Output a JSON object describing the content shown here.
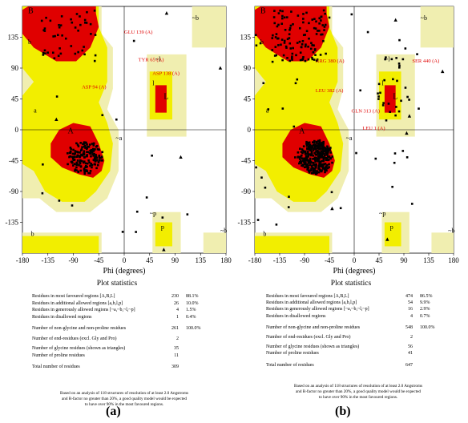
{
  "colors": {
    "core": "#e00000",
    "allowed": "#f2ee00",
    "generous": "#f0eeb0",
    "bg": "#ffffff"
  },
  "plots": [
    {
      "id": "a",
      "caption": "(a)",
      "x_axis_label": "Phi (degrees)",
      "psi_ticks": [
        "135",
        "90",
        "45",
        "0",
        "-45",
        "-90",
        "-135"
      ],
      "phi_ticks": [
        "-180",
        "-135",
        "-90",
        "-45",
        "0",
        "45",
        "90",
        "135",
        "180"
      ],
      "region_labels": [
        "B",
        "b",
        "A",
        "a",
        "~a",
        "l",
        "~l",
        "L",
        "~b",
        "p",
        "~p",
        "b",
        "~b"
      ],
      "residue_labels": [
        "GLU 139 (A)",
        "TYR 65 (A)",
        "ASP 138 (A)",
        "ASP 94 (A)"
      ],
      "stats": {
        "title": "Plot statistics",
        "rows": [
          {
            "label": "Residues in most favoured regions  [A,B,L]",
            "n": "230",
            "p": "88.1%"
          },
          {
            "label": "Residues in additional allowed regions  [a,b,l,p]",
            "n": "26",
            "p": "10.0%"
          },
          {
            "label": "Residues in generously allowed regions  [~a,~b,~l,~p]",
            "n": "4",
            "p": "1.5%"
          },
          {
            "label": "Residues in disallowed regions",
            "n": "1",
            "p": "0.4%"
          },
          {
            "label": "Number of non-glycine and non-proline residues",
            "n": "261",
            "p": "100.0%"
          },
          {
            "label": "Number of end-residues (excl. Gly and Pro)",
            "n": "2",
            "p": ""
          },
          {
            "label": "Number of glycine residues (shown as triangles)",
            "n": "35",
            "p": ""
          },
          {
            "label": "Number of proline residues",
            "n": "11",
            "p": ""
          },
          {
            "label": "Total number of residues",
            "n": "309",
            "p": ""
          }
        ],
        "note": [
          "Based on an analysis of 118 structures of resolution of at least 2.0 Angstroms",
          "and R-factor no greater than 20%, a good quality model would be expected",
          "to have over 90% in the most favoured regions."
        ]
      }
    },
    {
      "id": "b",
      "caption": "(b)",
      "x_axis_label": "Phi (degrees)",
      "psi_ticks": [
        "135",
        "90",
        "45",
        "0",
        "-45",
        "-90",
        "-135"
      ],
      "phi_ticks": [
        "-180",
        "-135",
        "-90",
        "-45",
        "0",
        "45",
        "90",
        "135",
        "180"
      ],
      "region_labels": [
        "B",
        "b",
        "A",
        "a",
        "~a",
        "l",
        "~l",
        "L",
        "~b",
        "p",
        "~p",
        "b",
        "~b"
      ],
      "residue_labels": [
        "ARG 380 (A)",
        "LEU 382 (A)",
        "GLN 313 (A)",
        "LEU 1 (A)",
        "SER 440 (A)"
      ],
      "stats": {
        "title": "Plot statistics",
        "rows": [
          {
            "label": "Residues in most favoured regions  [A,B,L]",
            "n": "474",
            "p": "86.5%"
          },
          {
            "label": "Residues in additional allowed regions  [a,b,l,p]",
            "n": "54",
            "p": "9.9%"
          },
          {
            "label": "Residues in generously allowed regions  [~a,~b,~l,~p]",
            "n": "16",
            "p": "2.9%"
          },
          {
            "label": "Residues in disallowed regions",
            "n": "4",
            "p": "0.7%"
          },
          {
            "label": "Number of non-glycine and non-proline residues",
            "n": "548",
            "p": "100.0%"
          },
          {
            "label": "Number of end-residues (excl. Gly and Pro)",
            "n": "2",
            "p": ""
          },
          {
            "label": "Number of glycine residues (shown as triangles)",
            "n": "56",
            "p": ""
          },
          {
            "label": "Number of proline residues",
            "n": "41",
            "p": ""
          },
          {
            "label": "Total number of residues",
            "n": "647",
            "p": ""
          }
        ],
        "note": [
          "Based on an analysis of 118 structures of resolution of at least 2.0 Angstroms",
          "and R-factor no greater than 20%, a good quality model would be expected",
          "to have over 90% in the most favoured regions."
        ]
      }
    }
  ]
}
